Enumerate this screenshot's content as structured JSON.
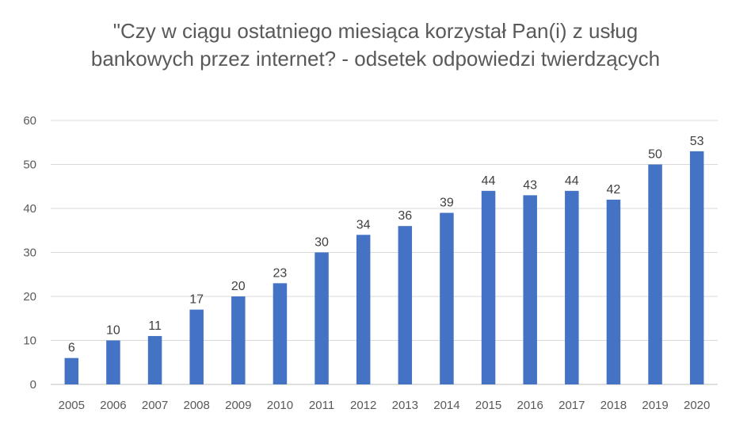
{
  "chart_data": {
    "type": "bar",
    "title": "\"Czy w ciągu ostatniego miesiąca korzystał Pan(i) z usług bankowych przez internet? - odsetek odpowiedzi twierdzących",
    "categories": [
      "2005",
      "2006",
      "2007",
      "2008",
      "2009",
      "2010",
      "2011",
      "2012",
      "2013",
      "2014",
      "2015",
      "2016",
      "2017",
      "2018",
      "2019",
      "2020"
    ],
    "series": [
      {
        "values": [
          6,
          10,
          11,
          17,
          20,
          23,
          30,
          34,
          36,
          39,
          44,
          43,
          44,
          42,
          50,
          53
        ]
      }
    ],
    "xlabel": "",
    "ylabel": "",
    "ylim": [
      0,
      60
    ],
    "yticks": [
      0,
      10,
      20,
      30,
      40,
      50,
      60
    ],
    "grid": true,
    "legend": "none",
    "bar_color": "#4472C4",
    "data_labels": true
  }
}
